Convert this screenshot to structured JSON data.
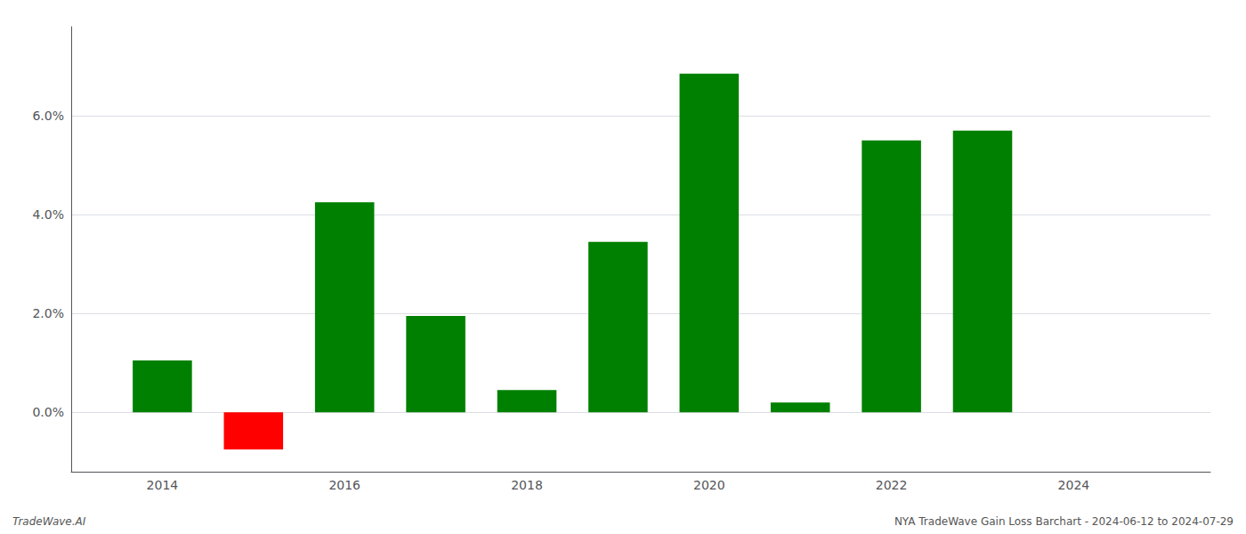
{
  "chart_data": {
    "type": "bar",
    "x": [
      2014,
      2015,
      2016,
      2017,
      2018,
      2019,
      2020,
      2021,
      2022,
      2023
    ],
    "values": [
      0.0105,
      -0.0075,
      0.0425,
      0.0195,
      0.0045,
      0.0345,
      0.0685,
      0.002,
      0.055,
      0.057
    ],
    "colors": [
      "#008000",
      "#ff0000",
      "#008000",
      "#008000",
      "#008000",
      "#008000",
      "#008000",
      "#008000",
      "#008000",
      "#008000"
    ],
    "xlim": [
      2013.0,
      2025.5
    ],
    "xticks": [
      2014,
      2016,
      2018,
      2020,
      2022,
      2024
    ],
    "ylim": [
      -0.012,
      0.078
    ],
    "yticks": [
      {
        "value": 0.0,
        "label": "0.0%"
      },
      {
        "value": 0.02,
        "label": "2.0%"
      },
      {
        "value": 0.04,
        "label": "4.0%"
      },
      {
        "value": 0.06,
        "label": "6.0%"
      }
    ],
    "grid": true,
    "annotations": [
      "TradeWave.AI",
      "NYA TradeWave Gain Loss Barchart - 2024-06-12 to 2024-07-29"
    ]
  }
}
